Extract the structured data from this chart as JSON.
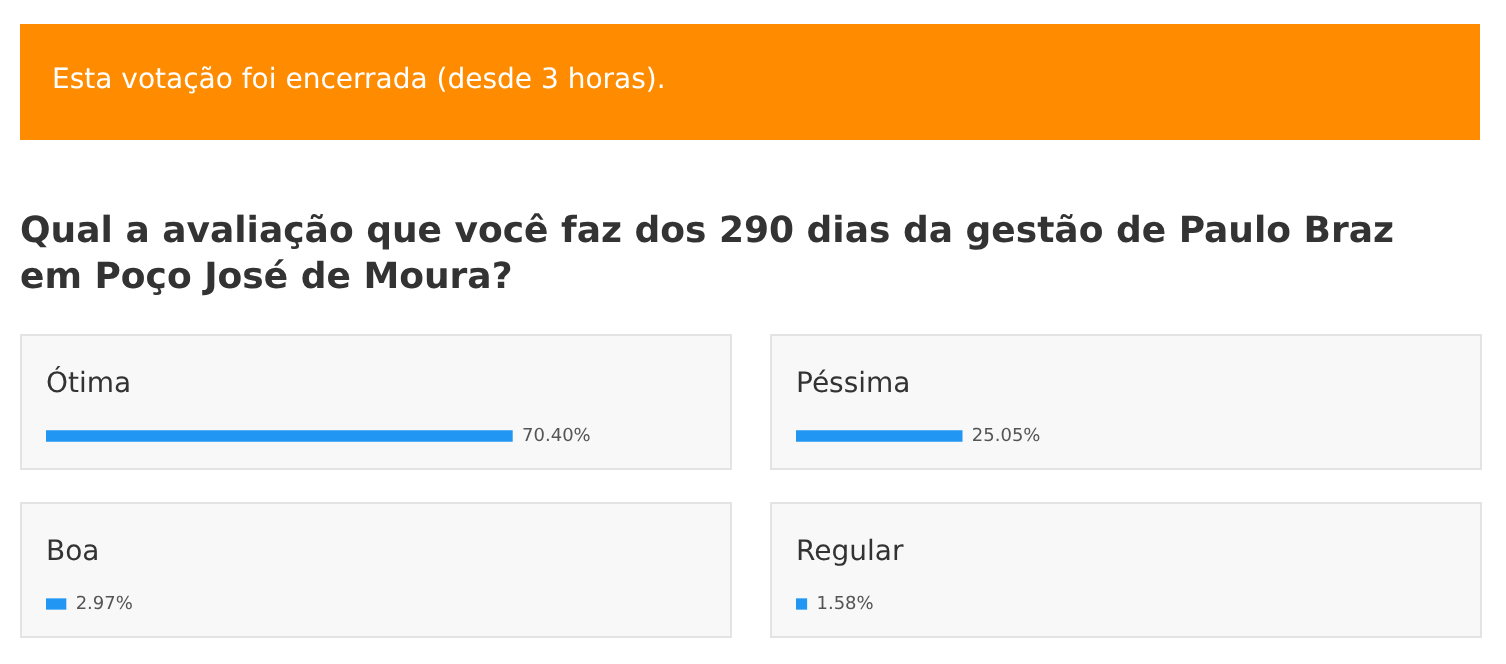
{
  "chart_data": [
    {
      "type": "bar",
      "orientation": "horizontal",
      "title": "Qual a avaliação que você faz dos 290 dias da gestão de Paulo Braz em Poço José de Moura?",
      "annotations": [
        "Esta votação foi encerrada (desde 3 horas)."
      ],
      "categories": [
        "Ótima"
      ],
      "values": [
        70.4
      ],
      "value_labels": [
        "70.40%"
      ],
      "color": "#2196f3"
    },
    {
      "type": "bar",
      "orientation": "horizontal",
      "categories": [
        "Péssima"
      ],
      "values": [
        25.05
      ],
      "value_labels": [
        "25.05%"
      ],
      "color": "#2196f3"
    },
    {
      "type": "bar",
      "orientation": "horizontal",
      "categories": [
        "Boa"
      ],
      "values": [
        2.97
      ],
      "value_labels": [
        "2.97%"
      ],
      "color": "#2196f3"
    },
    {
      "type": "bar",
      "orientation": "horizontal",
      "categories": [
        "Regular"
      ],
      "values": [
        1.58
      ],
      "value_labels": [
        "1.58%"
      ],
      "color": "#2196f3"
    }
  ]
}
